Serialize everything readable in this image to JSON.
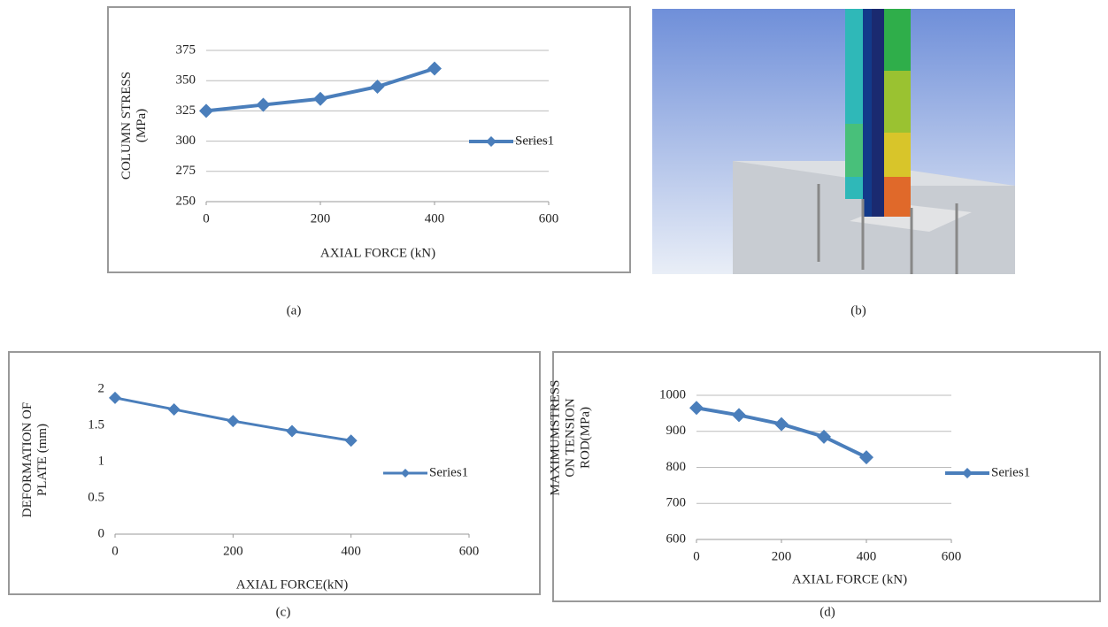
{
  "chart_data": [
    {
      "type": "line",
      "ylabel": [
        "COLUMN STRESS",
        "(MPa)"
      ],
      "xlabel": "AXIAL FORCE (kN)",
      "x": [
        0,
        100,
        200,
        300,
        400
      ],
      "series": [
        {
          "name": "Series1",
          "color": "#4a7ebb",
          "values": [
            325,
            330,
            335,
            345,
            360
          ]
        }
      ],
      "xlim": [
        0,
        600
      ],
      "xticks": [
        0,
        200,
        400,
        600
      ],
      "ylim": [
        250,
        375
      ],
      "yticks": [
        250,
        275,
        300,
        325,
        350,
        375
      ],
      "grid": true,
      "legend": "right"
    },
    {
      "type": "line",
      "ylabel": [
        "DEFORMATION OF",
        "PLATE (mm)"
      ],
      "xlabel": "AXIAL FORCE(kN)",
      "x": [
        0,
        100,
        200,
        300,
        400
      ],
      "series": [
        {
          "name": "Series1",
          "color": "#4a7ebb",
          "values": [
            1.88,
            1.72,
            1.56,
            1.42,
            1.29
          ]
        }
      ],
      "xlim": [
        0,
        600
      ],
      "xticks": [
        0,
        200,
        400,
        600
      ],
      "ylim": [
        0,
        2
      ],
      "yticks": [
        0,
        0.5,
        1,
        1.5,
        2
      ],
      "grid": false,
      "legend": "right"
    },
    {
      "type": "line",
      "ylabel": [
        "MAXIMUMSTRESS",
        "ON TENSION",
        "ROD(MPa)"
      ],
      "xlabel": "AXIAL FORCE (kN)",
      "x": [
        0,
        100,
        200,
        300,
        400
      ],
      "series": [
        {
          "name": "Series1",
          "color": "#4a7ebb",
          "values": [
            965,
            945,
            920,
            885,
            828
          ]
        }
      ],
      "xlim": [
        0,
        600
      ],
      "xticks": [
        0,
        200,
        400,
        600
      ],
      "ylim": [
        600,
        1000
      ],
      "yticks": [
        600,
        700,
        800,
        900,
        1000
      ],
      "grid": true,
      "legend": "right"
    }
  ],
  "captions": [
    "(a)",
    "(b)",
    "(c)",
    "(d)"
  ]
}
